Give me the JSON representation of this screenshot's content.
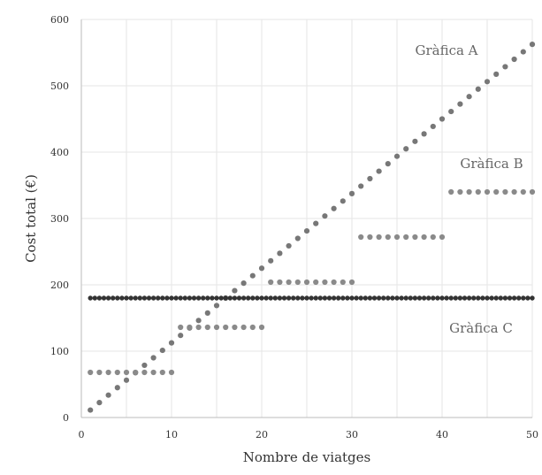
{
  "chart_data": {
    "type": "scatter",
    "xlabel": "Nombre de viatges",
    "ylabel": "Cost total (€)",
    "xlim": [
      0,
      50
    ],
    "ylim": [
      0,
      600
    ],
    "xticks": [
      "0",
      "10",
      "20",
      "30",
      "40",
      "50"
    ],
    "yticks": [
      "0",
      "100",
      "200",
      "300",
      "400",
      "500",
      "600"
    ],
    "grid": true,
    "series": [
      {
        "name": "Gràfica A",
        "color": "#777777",
        "rule": "linear",
        "x_range": [
          1,
          50
        ],
        "slope": 11.25,
        "intercept": 0
      },
      {
        "name": "Gràfica B",
        "color": "#8a8a8a",
        "rule": "step",
        "steps": [
          {
            "x_range": [
              1,
              10
            ],
            "y": 68
          },
          {
            "x_range": [
              11,
              20
            ],
            "y": 136
          },
          {
            "x_range": [
              21,
              30
            ],
            "y": 204
          },
          {
            "x_range": [
              31,
              40
            ],
            "y": 272
          },
          {
            "x_range": [
              41,
              50
            ],
            "y": 340
          }
        ]
      },
      {
        "name": "Gràfica C",
        "color": "#333333",
        "rule": "constant",
        "x_range": [
          1,
          50
        ],
        "y": 180,
        "points_per_unit": 2
      }
    ]
  }
}
